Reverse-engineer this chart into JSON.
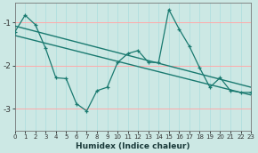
{
  "xlabel": "Humidex (Indice chaleur)",
  "bg_color": "#cce8e4",
  "grid_h_color": "#ffaaaa",
  "grid_v_color": "#aadddd",
  "line_color": "#1a7a70",
  "xlim": [
    0,
    23
  ],
  "ylim": [
    -3.5,
    -0.55
  ],
  "yticks": [
    -3,
    -2,
    -1
  ],
  "xticks": [
    0,
    1,
    2,
    3,
    4,
    5,
    6,
    7,
    8,
    9,
    10,
    11,
    12,
    13,
    14,
    15,
    16,
    17,
    18,
    19,
    20,
    21,
    22,
    23
  ],
  "upper_line_x": [
    0,
    23
  ],
  "upper_line_y": [
    -1.08,
    -2.5
  ],
  "lower_line_x": [
    0,
    23
  ],
  "lower_line_y": [
    -1.3,
    -2.68
  ],
  "zigzag_x": [
    0,
    1,
    2,
    3,
    4,
    5,
    6,
    7,
    8,
    9,
    10,
    11,
    12,
    13,
    14,
    15,
    16,
    17,
    18,
    19,
    20,
    21,
    22,
    23
  ],
  "zigzag_y": [
    -1.22,
    -0.83,
    -1.05,
    -1.6,
    -2.28,
    -2.3,
    -2.88,
    -3.05,
    -2.58,
    -2.5,
    -1.93,
    -1.72,
    -1.65,
    -1.92,
    -1.93,
    -0.7,
    -1.15,
    -1.55,
    -2.05,
    -2.5,
    -2.28,
    -2.58,
    -2.62,
    -2.62
  ]
}
